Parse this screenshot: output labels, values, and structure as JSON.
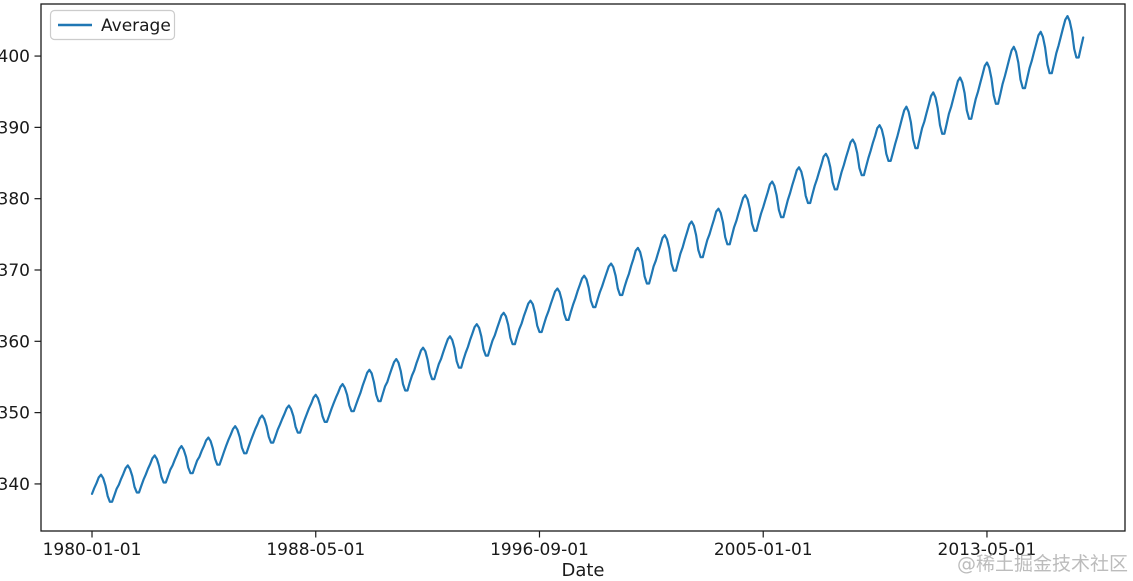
{
  "figure": {
    "xlabel": "Date",
    "legend": {
      "label": "Average"
    },
    "watermark": "@稀土掘金技术社区"
  },
  "chart_data": {
    "type": "line",
    "title": "",
    "xlabel": "Date",
    "ylabel": "",
    "grid": false,
    "legend_position": "upper left",
    "line_color": "#1f77b4",
    "axis_color": "#1a1a1a",
    "x_axis": {
      "unit": "months since 1980-01-01",
      "tick_month_indices": [
        0,
        100,
        200,
        300,
        400
      ],
      "tick_labels": [
        "1980-01-01",
        "1988-05-01",
        "1996-09-01",
        "2005-01-01",
        "2013-05-01"
      ],
      "xlim_months": [
        -22.8,
        461.7
      ]
    },
    "y_axis": {
      "ticks": [
        340,
        350,
        360,
        370,
        380,
        390,
        400
      ],
      "ylim": [
        333.4,
        407.3
      ]
    },
    "series": [
      {
        "name": "Average",
        "color": "#1f77b4",
        "frequency": "monthly",
        "first_year": 1980,
        "start": "1980-01",
        "end": "2016-12",
        "values_by_year": [
          [
            338.6,
            339.4,
            340.1,
            340.9,
            341.3,
            340.8,
            339.8,
            338.3,
            337.5,
            337.5,
            338.4,
            339.3
          ],
          [
            339.9,
            340.7,
            341.4,
            342.2,
            342.6,
            342.1,
            341.1,
            339.6,
            338.8,
            338.8,
            339.7,
            340.6
          ],
          [
            341.3,
            342.1,
            342.8,
            343.6,
            344.0,
            343.5,
            342.5,
            341.0,
            340.2,
            340.2,
            341.1,
            342.0
          ],
          [
            342.6,
            343.4,
            344.1,
            344.9,
            345.3,
            344.8,
            343.8,
            342.3,
            341.5,
            341.5,
            342.4,
            343.3
          ],
          [
            343.8,
            344.6,
            345.3,
            346.1,
            346.5,
            346.0,
            345.0,
            343.5,
            342.7,
            342.7,
            343.6,
            344.5
          ],
          [
            345.4,
            346.2,
            346.9,
            347.7,
            348.1,
            347.6,
            346.6,
            345.1,
            344.3,
            344.3,
            345.2,
            346.1
          ],
          [
            346.9,
            347.7,
            348.4,
            349.2,
            349.6,
            349.1,
            348.1,
            346.6,
            345.8,
            345.8,
            346.7,
            347.6
          ],
          [
            348.3,
            349.1,
            349.8,
            350.6,
            351.0,
            350.5,
            349.5,
            348.0,
            347.2,
            347.2,
            348.1,
            349.0
          ],
          [
            349.8,
            350.6,
            351.3,
            352.1,
            352.5,
            352.0,
            351.0,
            349.5,
            348.7,
            348.7,
            349.6,
            350.5
          ],
          [
            351.3,
            352.1,
            352.8,
            353.6,
            354.0,
            353.5,
            352.5,
            351.0,
            350.2,
            350.2,
            351.1,
            352.0
          ],
          [
            352.8,
            353.8,
            354.7,
            355.6,
            356.0,
            355.5,
            354.3,
            352.5,
            351.6,
            351.6,
            352.7,
            353.7
          ],
          [
            354.3,
            355.3,
            356.2,
            357.1,
            357.5,
            357.0,
            355.8,
            354.0,
            353.1,
            353.1,
            354.2,
            355.2
          ],
          [
            355.9,
            356.9,
            357.8,
            358.7,
            359.1,
            358.6,
            357.4,
            355.6,
            354.7,
            354.7,
            355.8,
            356.8
          ],
          [
            357.5,
            358.5,
            359.4,
            360.3,
            360.7,
            360.2,
            359.0,
            357.2,
            356.3,
            356.3,
            357.4,
            358.4
          ],
          [
            359.2,
            360.2,
            361.1,
            362.0,
            362.4,
            361.9,
            360.7,
            358.9,
            358.0,
            358.0,
            359.1,
            360.1
          ],
          [
            360.8,
            361.8,
            362.7,
            363.6,
            364.0,
            363.5,
            362.3,
            360.5,
            359.6,
            359.6,
            360.7,
            361.7
          ],
          [
            362.5,
            363.5,
            364.4,
            365.3,
            365.7,
            365.2,
            364.0,
            362.2,
            361.3,
            361.3,
            362.4,
            363.4
          ],
          [
            364.2,
            365.2,
            366.1,
            367.0,
            367.4,
            366.9,
            365.7,
            363.9,
            363.0,
            363.0,
            364.1,
            365.1
          ],
          [
            366.0,
            367.0,
            367.9,
            368.8,
            369.2,
            368.7,
            367.5,
            365.7,
            364.8,
            364.8,
            365.9,
            366.9
          ],
          [
            367.7,
            368.7,
            369.6,
            370.5,
            370.9,
            370.4,
            369.2,
            367.4,
            366.5,
            366.5,
            367.6,
            368.6
          ],
          [
            369.5,
            370.6,
            371.6,
            372.7,
            373.1,
            372.5,
            371.2,
            369.1,
            368.1,
            368.1,
            369.3,
            370.5
          ],
          [
            371.3,
            372.4,
            373.4,
            374.5,
            374.9,
            374.3,
            373.0,
            370.9,
            369.9,
            369.9,
            371.1,
            372.3
          ],
          [
            373.2,
            374.3,
            375.3,
            376.4,
            376.8,
            376.2,
            374.9,
            372.8,
            371.8,
            371.8,
            373.0,
            374.2
          ],
          [
            375.0,
            376.1,
            377.1,
            378.2,
            378.6,
            378.0,
            376.7,
            374.6,
            373.6,
            373.6,
            374.8,
            376.0
          ],
          [
            376.9,
            378.0,
            379.0,
            380.1,
            380.5,
            379.9,
            378.6,
            376.5,
            375.5,
            375.5,
            376.7,
            377.9
          ],
          [
            378.8,
            379.9,
            380.9,
            382.0,
            382.4,
            381.8,
            380.5,
            378.4,
            377.4,
            377.4,
            378.6,
            379.8
          ],
          [
            380.8,
            381.9,
            382.9,
            384.0,
            384.4,
            383.8,
            382.5,
            380.4,
            379.4,
            379.4,
            380.6,
            381.8
          ],
          [
            382.7,
            383.8,
            384.8,
            385.9,
            386.3,
            385.7,
            384.4,
            382.3,
            381.3,
            381.3,
            382.5,
            383.7
          ],
          [
            384.7,
            385.8,
            386.8,
            387.9,
            388.3,
            387.7,
            386.4,
            384.3,
            383.3,
            383.3,
            384.5,
            385.7
          ],
          [
            386.7,
            387.8,
            388.8,
            389.9,
            390.3,
            389.7,
            388.4,
            386.3,
            385.3,
            385.3,
            386.5,
            387.7
          ],
          [
            388.8,
            390.0,
            391.2,
            392.4,
            392.9,
            392.2,
            390.7,
            388.3,
            387.1,
            387.1,
            388.5,
            389.9
          ],
          [
            390.8,
            392.0,
            393.2,
            394.4,
            394.9,
            394.2,
            392.7,
            390.3,
            389.1,
            389.1,
            390.5,
            391.9
          ],
          [
            392.9,
            394.1,
            395.3,
            396.5,
            397.0,
            396.3,
            394.8,
            392.4,
            391.2,
            391.2,
            392.6,
            394.0
          ],
          [
            395.0,
            396.2,
            397.4,
            398.6,
            399.1,
            398.4,
            396.9,
            394.5,
            393.3,
            393.3,
            394.7,
            396.1
          ],
          [
            397.2,
            398.4,
            399.6,
            400.8,
            401.3,
            400.6,
            399.1,
            396.7,
            395.5,
            395.5,
            396.9,
            398.3
          ],
          [
            399.3,
            400.5,
            401.7,
            402.9,
            403.4,
            402.7,
            401.2,
            398.8,
            397.6,
            397.6,
            399.0,
            400.4
          ],
          [
            401.5,
            402.7,
            403.9,
            405.1,
            405.6,
            404.9,
            403.4,
            401.0,
            399.8,
            399.8,
            401.2,
            402.6
          ]
        ]
      }
    ]
  }
}
